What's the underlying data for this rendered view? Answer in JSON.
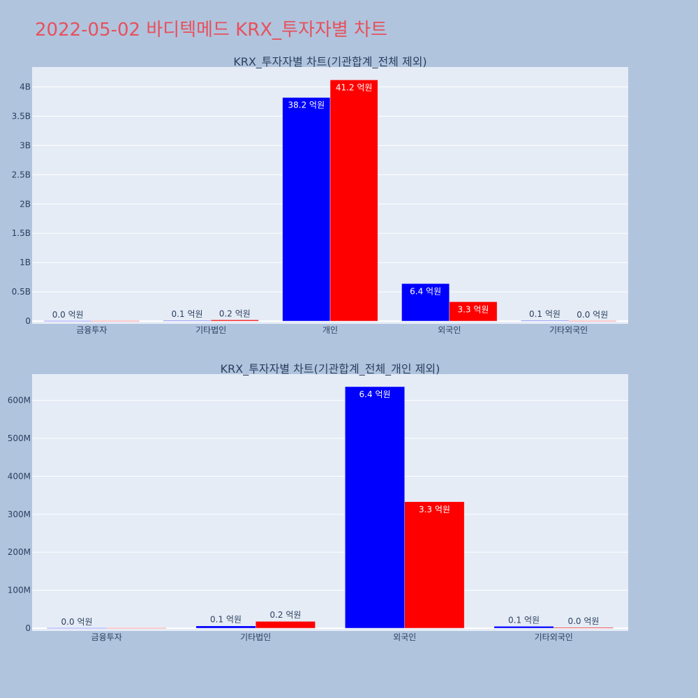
{
  "page_title": "2022-05-02 바디텍메드 KRX_투자자별 차트",
  "colors": {
    "background": "#b0c4de",
    "plot_background": "#e5ecf6",
    "title": "#e8505b",
    "series_a": "#0000ff",
    "series_b": "#ff0000"
  },
  "chart_data": [
    {
      "type": "bar",
      "title": "KRX_투자자별 차트(기관합계_전체 제외)",
      "categories": [
        "금융투자",
        "기타법인",
        "개인",
        "외국인",
        "기타외국인"
      ],
      "series": [
        {
          "color": "#0000ff",
          "values": [
            0,
            10000000,
            3820000000,
            640000000,
            10000000
          ],
          "labels": [
            "0.0 억원",
            "0.1 억원",
            "38.2 억원",
            "6.4 억원",
            "0.1 억원"
          ]
        },
        {
          "color": "#ff0000",
          "values": [
            0,
            20000000,
            4120000000,
            330000000,
            0
          ],
          "labels": [
            "",
            "0.2 억원",
            "41.2 억원",
            "3.3 억원",
            "0.0 억원"
          ]
        }
      ],
      "yticks": [
        0,
        500000000,
        1000000000,
        1500000000,
        2000000000,
        2500000000,
        3000000000,
        3500000000,
        4000000000
      ],
      "ytick_labels": [
        "0",
        "0.5B",
        "1B",
        "1.5B",
        "2B",
        "2.5B",
        "3B",
        "3.5B",
        "4B"
      ],
      "ylim": [
        0,
        4340000000
      ],
      "grid": true,
      "legend": "none"
    },
    {
      "type": "bar",
      "title": "KRX_투자자별 차트(기관합계_전체_개인 제외)",
      "categories": [
        "금융투자",
        "기타법인",
        "외국인",
        "기타외국인"
      ],
      "series": [
        {
          "color": "#0000ff",
          "values": [
            0,
            6000000,
            636000000,
            5000000
          ],
          "labels": [
            "0.0 억원",
            "0.1 억원",
            "6.4 억원",
            "0.1 억원"
          ]
        },
        {
          "color": "#ff0000",
          "values": [
            0,
            18000000,
            333000000,
            2000000
          ],
          "labels": [
            "",
            "0.2 억원",
            "3.3 억원",
            "0.0 억원"
          ]
        }
      ],
      "yticks": [
        0,
        100000000,
        200000000,
        300000000,
        400000000,
        500000000,
        600000000
      ],
      "ytick_labels": [
        "0",
        "100M",
        "200M",
        "300M",
        "400M",
        "500M",
        "600M"
      ],
      "ylim": [
        0,
        669000000
      ],
      "grid": true,
      "legend": "none"
    }
  ]
}
